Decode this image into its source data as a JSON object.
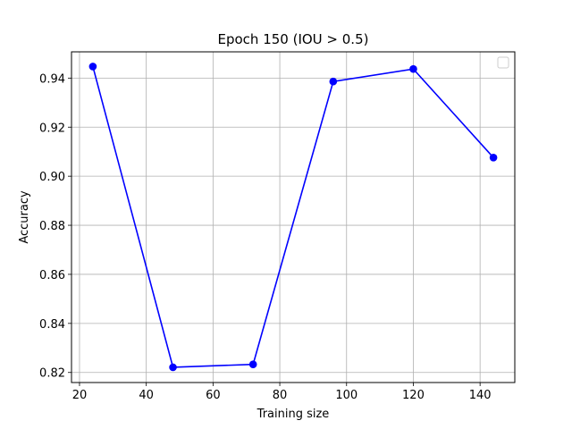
{
  "chart_data": {
    "type": "line",
    "title": "Epoch 150  (IOU > 0.5)",
    "xlabel": "Training size",
    "ylabel": "Accuracy",
    "xlim": [
      17.6,
      150.4
    ],
    "ylim": [
      0.8159,
      0.9507
    ],
    "xticks": [
      20,
      40,
      60,
      80,
      100,
      120,
      140
    ],
    "yticks": [
      0.82,
      0.84,
      0.86,
      0.88,
      0.9,
      0.92,
      0.94
    ],
    "ytick_labels": [
      "0.82",
      "0.84",
      "0.86",
      "0.88",
      "0.90",
      "0.92",
      "0.94"
    ],
    "grid": true,
    "legend": {
      "placement": "upper-right",
      "entries": []
    },
    "series": [
      {
        "color": "#0000ff",
        "marker": "circle",
        "x": [
          24,
          48,
          72,
          96,
          120,
          144
        ],
        "y": [
          0.9447,
          0.8221,
          0.8233,
          0.9386,
          0.9437,
          0.9076
        ]
      }
    ]
  }
}
